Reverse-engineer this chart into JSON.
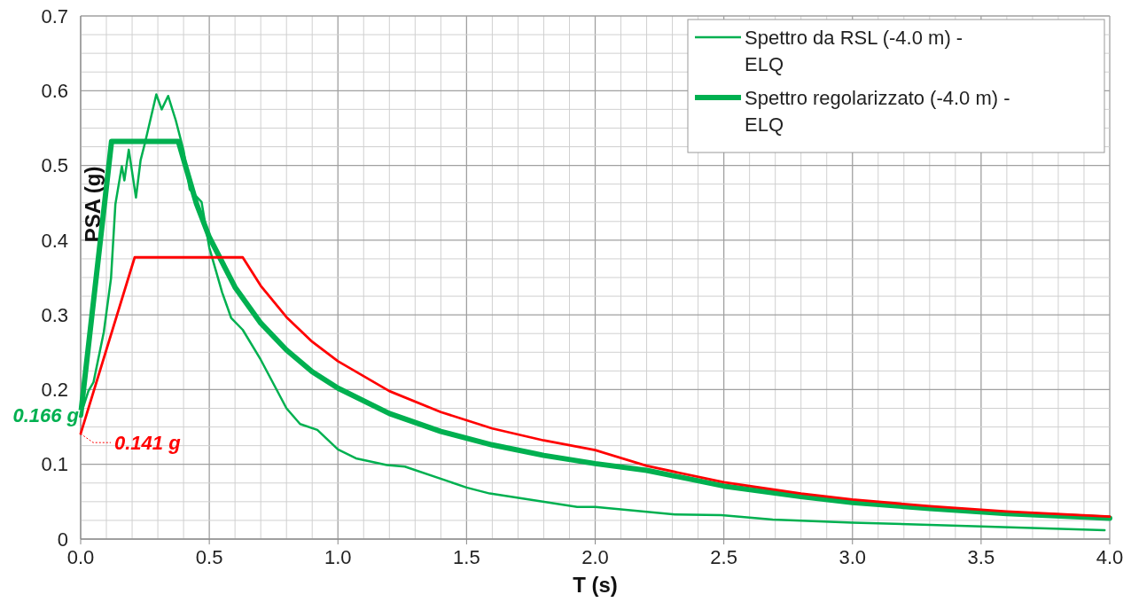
{
  "chart_data": {
    "type": "line",
    "xlabel": "T (s)",
    "ylabel": "PSA (g)",
    "xlim": [
      0,
      4
    ],
    "ylim": [
      0,
      0.7
    ],
    "xticks": [
      {
        "value": 0,
        "label": "0.0"
      },
      {
        "value": 0.1,
        "label": null
      },
      {
        "value": 0.2,
        "label": null
      },
      {
        "value": 0.3,
        "label": null
      },
      {
        "value": 0.4,
        "label": null
      },
      {
        "value": 0.5,
        "label": "0.5"
      },
      {
        "value": 0.6,
        "label": null
      },
      {
        "value": 0.7,
        "label": null
      },
      {
        "value": 0.8,
        "label": null
      },
      {
        "value": 0.9,
        "label": null
      },
      {
        "value": 1,
        "label": "1.0"
      },
      {
        "value": 1.1,
        "label": null
      },
      {
        "value": 1.2,
        "label": null
      },
      {
        "value": 1.3,
        "label": null
      },
      {
        "value": 1.4,
        "label": null
      },
      {
        "value": 1.5,
        "label": "1.5"
      },
      {
        "value": 1.6,
        "label": null
      },
      {
        "value": 1.7,
        "label": null
      },
      {
        "value": 1.8,
        "label": null
      },
      {
        "value": 1.9,
        "label": null
      },
      {
        "value": 2,
        "label": "2.0"
      },
      {
        "value": 2.1,
        "label": null
      },
      {
        "value": 2.2,
        "label": null
      },
      {
        "value": 2.3,
        "label": null
      },
      {
        "value": 2.4,
        "label": null
      },
      {
        "value": 2.5,
        "label": "2.5"
      },
      {
        "value": 2.6,
        "label": null
      },
      {
        "value": 2.7,
        "label": null
      },
      {
        "value": 2.8,
        "label": null
      },
      {
        "value": 2.9,
        "label": null
      },
      {
        "value": 3,
        "label": "3.0"
      },
      {
        "value": 3.1,
        "label": null
      },
      {
        "value": 3.2,
        "label": null
      },
      {
        "value": 3.3,
        "label": null
      },
      {
        "value": 3.4,
        "label": null
      },
      {
        "value": 3.5,
        "label": "3.5"
      },
      {
        "value": 3.6,
        "label": null
      },
      {
        "value": 3.7,
        "label": null
      },
      {
        "value": 3.8,
        "label": null
      },
      {
        "value": 3.9,
        "label": null
      },
      {
        "value": 4,
        "label": "4.0"
      }
    ],
    "yticks": [
      0,
      {
        "value": 0.025,
        "label": null
      },
      {
        "value": 0.05,
        "label": null
      },
      {
        "value": 0.075,
        "label": null
      },
      0.1,
      {
        "value": 0.125,
        "label": null
      },
      {
        "value": 0.15,
        "label": null
      },
      {
        "value": 0.175,
        "label": null
      },
      0.2,
      {
        "value": 0.225,
        "label": null
      },
      {
        "value": 0.25,
        "label": null
      },
      {
        "value": 0.275,
        "label": null
      },
      0.3,
      {
        "value": 0.325,
        "label": null
      },
      {
        "value": 0.35,
        "label": null
      },
      {
        "value": 0.375,
        "label": null
      },
      0.4,
      {
        "value": 0.425,
        "label": null
      },
      {
        "value": 0.45,
        "label": null
      },
      {
        "value": 0.475,
        "label": null
      },
      0.5,
      {
        "value": 0.525,
        "label": null
      },
      {
        "value": 0.55,
        "label": null
      },
      {
        "value": 0.575,
        "label": null
      },
      0.6,
      {
        "value": 0.625,
        "label": null
      },
      {
        "value": 0.65,
        "label": null
      },
      {
        "value": 0.675,
        "label": null
      },
      0.7
    ],
    "grid": true,
    "legend": "top right",
    "line_style": "solid",
    "marker": "none",
    "series": [
      {
        "name": "Spettro da RSL (-4.0 m) - ELQ",
        "color": "#00b050",
        "x": [
          0,
          0.03,
          0.05,
          0.09,
          0.118,
          0.135,
          0.16,
          0.17,
          0.187,
          0.215,
          0.233,
          0.25,
          0.294,
          0.315,
          0.34,
          0.37,
          0.4,
          0.424,
          0.47,
          0.5,
          0.55,
          0.585,
          0.63,
          0.7,
          0.8,
          0.853,
          0.92,
          1.0,
          1.07,
          1.19,
          1.26,
          1.5,
          1.59,
          1.93,
          2.0,
          2.31,
          2.49,
          2.69,
          3.0,
          3.5,
          3.98
        ],
        "values": [
          0.166,
          0.198,
          0.21,
          0.277,
          0.349,
          0.448,
          0.499,
          0.48,
          0.521,
          0.457,
          0.507,
          0.53,
          0.595,
          0.575,
          0.593,
          0.56,
          0.52,
          0.468,
          0.451,
          0.39,
          0.33,
          0.296,
          0.28,
          0.24,
          0.175,
          0.154,
          0.146,
          0.12,
          0.108,
          0.099,
          0.097,
          0.069,
          0.061,
          0.043,
          0.043,
          0.033,
          0.032,
          0.026,
          0.022,
          0.017,
          0.012
        ]
      },
      {
        "name": "Spettro regolarizzato (-4.0 m) - ELQ",
        "color": "#00b050",
        "x": [
          0,
          0.12,
          0.38,
          0.45,
          0.5,
          0.6,
          0.7,
          0.8,
          0.9,
          1.0,
          1.2,
          1.4,
          1.6,
          1.8,
          2.0,
          2.2,
          2.5,
          2.8,
          3.0,
          3.3,
          3.6,
          4.0
        ],
        "values": [
          0.166,
          0.532,
          0.532,
          0.449,
          0.404,
          0.337,
          0.289,
          0.253,
          0.224,
          0.202,
          0.168,
          0.144,
          0.126,
          0.112,
          0.101,
          0.092,
          0.071,
          0.057,
          0.049,
          0.041,
          0.034,
          0.028
        ]
      },
      {
        "color": "#ff0000",
        "x": [
          0,
          0.21,
          0.63,
          0.7,
          0.8,
          0.9,
          1.0,
          1.2,
          1.4,
          1.6,
          1.8,
          2.0,
          2.2,
          2.5,
          2.8,
          3.0,
          3.3,
          3.6,
          4.0
        ],
        "values": [
          0.141,
          0.377,
          0.377,
          0.339,
          0.297,
          0.264,
          0.238,
          0.198,
          0.17,
          0.148,
          0.132,
          0.119,
          0.098,
          0.076,
          0.061,
          0.053,
          0.044,
          0.037,
          0.03
        ]
      }
    ],
    "annotations": [
      {
        "text": "0.166 g",
        "x": 0,
        "y": 0.166
      },
      {
        "text": "0.141 g",
        "x": 0,
        "y": 0.141
      }
    ]
  }
}
